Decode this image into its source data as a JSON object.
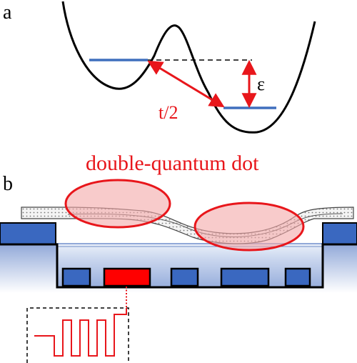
{
  "panel_a": {
    "label": "a",
    "tunnel_label": "t/2",
    "detuning_label": "ε"
  },
  "panel_b": {
    "label": "b",
    "dot_title": "double-quantum dot"
  },
  "colors": {
    "potential": "#000000",
    "level": "#3f6fbd",
    "annotation_red": "#e8161b",
    "dot_fill": "#f4a9a9",
    "gate": "#3a68c0",
    "readout_gate": "#ff0000",
    "substrate_top": "#e8eef8",
    "substrate_bottom": "#9eb4de",
    "nanotube_fill": "#efefef"
  }
}
